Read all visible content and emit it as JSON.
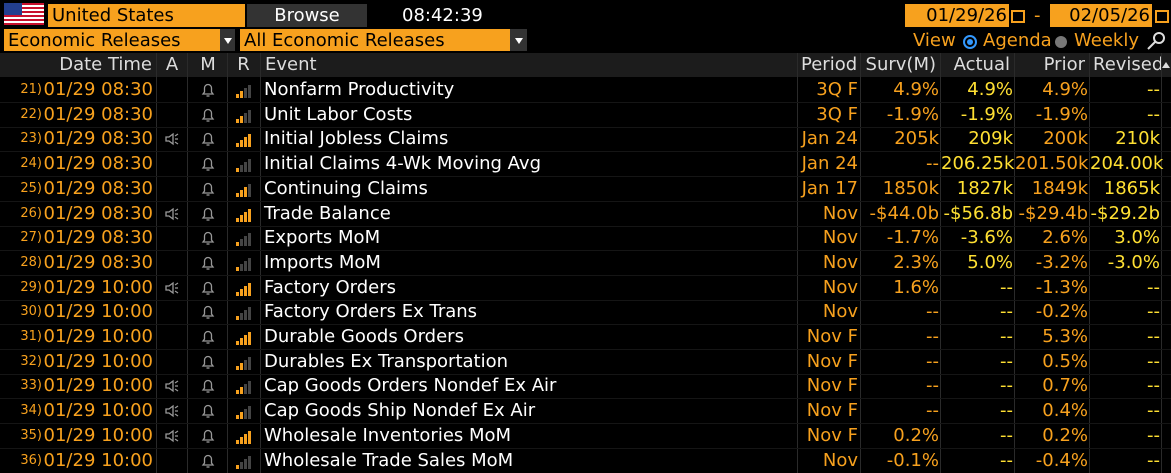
{
  "header": {
    "country": "United States",
    "browse": "Browse",
    "time": "08:42:39",
    "start_date": "01/29/26",
    "date_sep": "-",
    "end_date": "02/05/26",
    "category": "Economic Releases",
    "filter": "All Economic Releases",
    "view_label": "View",
    "view_options": [
      "Agenda",
      "Weekly"
    ],
    "view_selected": 0
  },
  "table": {
    "columns": [
      "Date Time",
      "A",
      "M",
      "R",
      "Event",
      "Period",
      "Surv(M)",
      "Actual",
      "Prior",
      "Revised"
    ],
    "rows": [
      {
        "num": "21)",
        "date_time": "01/29 08:30",
        "audio": false,
        "relevance": 2,
        "event": "Nonfarm Productivity",
        "period": "3Q F",
        "surv": "4.9%",
        "actual": "4.9%",
        "prior": "4.9%",
        "revised": "--"
      },
      {
        "num": "22)",
        "date_time": "01/29 08:30",
        "audio": false,
        "relevance": 2,
        "event": "Unit Labor Costs",
        "period": "3Q F",
        "surv": "-1.9%",
        "actual": "-1.9%",
        "prior": "-1.9%",
        "revised": "--"
      },
      {
        "num": "23)",
        "date_time": "01/29 08:30",
        "audio": true,
        "relevance": 4,
        "event": "Initial Jobless Claims",
        "period": "Jan 24",
        "surv": "205k",
        "actual": "209k",
        "prior": "200k",
        "revised": "210k"
      },
      {
        "num": "24)",
        "date_time": "01/29 08:30",
        "audio": false,
        "relevance": 1,
        "event": "Initial Claims 4-Wk Moving Avg",
        "period": "Jan 24",
        "surv": "--",
        "actual": "206.25k",
        "prior": "201.50k",
        "revised": "204.00k"
      },
      {
        "num": "25)",
        "date_time": "01/29 08:30",
        "audio": false,
        "relevance": 3,
        "event": "Continuing Claims",
        "period": "Jan 17",
        "surv": "1850k",
        "actual": "1827k",
        "prior": "1849k",
        "revised": "1865k"
      },
      {
        "num": "26)",
        "date_time": "01/29 08:30",
        "audio": true,
        "relevance": 4,
        "event": "Trade Balance",
        "period": "Nov",
        "surv": "-$44.0b",
        "actual": "-$56.8b",
        "prior": "-$29.4b",
        "revised": "-$29.2b"
      },
      {
        "num": "27)",
        "date_time": "01/29 08:30",
        "audio": false,
        "relevance": 1,
        "event": "Exports MoM",
        "period": "Nov",
        "surv": "-1.7%",
        "actual": "-3.6%",
        "prior": "2.6%",
        "revised": "3.0%"
      },
      {
        "num": "28)",
        "date_time": "01/29 08:30",
        "audio": false,
        "relevance": 1,
        "event": "Imports MoM",
        "period": "Nov",
        "surv": "2.3%",
        "actual": "5.0%",
        "prior": "-3.2%",
        "revised": "-3.0%"
      },
      {
        "num": "29)",
        "date_time": "01/29 10:00",
        "audio": true,
        "relevance": 4,
        "event": "Factory Orders",
        "period": "Nov",
        "surv": "1.6%",
        "actual": "--",
        "prior": "-1.3%",
        "revised": "--"
      },
      {
        "num": "30)",
        "date_time": "01/29 10:00",
        "audio": false,
        "relevance": 1,
        "event": "Factory Orders Ex Trans",
        "period": "Nov",
        "surv": "--",
        "actual": "--",
        "prior": "-0.2%",
        "revised": "--"
      },
      {
        "num": "31)",
        "date_time": "01/29 10:00",
        "audio": false,
        "relevance": 4,
        "event": "Durable Goods Orders",
        "period": "Nov F",
        "surv": "--",
        "actual": "--",
        "prior": "5.3%",
        "revised": "--"
      },
      {
        "num": "32)",
        "date_time": "01/29 10:00",
        "audio": false,
        "relevance": 2,
        "event": "Durables Ex Transportation",
        "period": "Nov F",
        "surv": "--",
        "actual": "--",
        "prior": "0.5%",
        "revised": "--"
      },
      {
        "num": "33)",
        "date_time": "01/29 10:00",
        "audio": true,
        "relevance": 2,
        "event": "Cap Goods Orders Nondef Ex Air",
        "period": "Nov F",
        "surv": "--",
        "actual": "--",
        "prior": "0.7%",
        "revised": "--"
      },
      {
        "num": "34)",
        "date_time": "01/29 10:00",
        "audio": true,
        "relevance": 2,
        "event": "Cap Goods Ship Nondef Ex Air",
        "period": "Nov F",
        "surv": "--",
        "actual": "--",
        "prior": "0.4%",
        "revised": "--"
      },
      {
        "num": "35)",
        "date_time": "01/29 10:00",
        "audio": true,
        "relevance": 4,
        "event": "Wholesale Inventories MoM",
        "period": "Nov F",
        "surv": "0.2%",
        "actual": "--",
        "prior": "0.2%",
        "revised": "--"
      },
      {
        "num": "36)",
        "date_time": "01/29 10:00",
        "audio": false,
        "relevance": 1,
        "event": "Wholesale Trade Sales MoM",
        "period": "Nov",
        "surv": "-0.1%",
        "actual": "--",
        "prior": "-0.4%",
        "revised": "--"
      }
    ]
  }
}
